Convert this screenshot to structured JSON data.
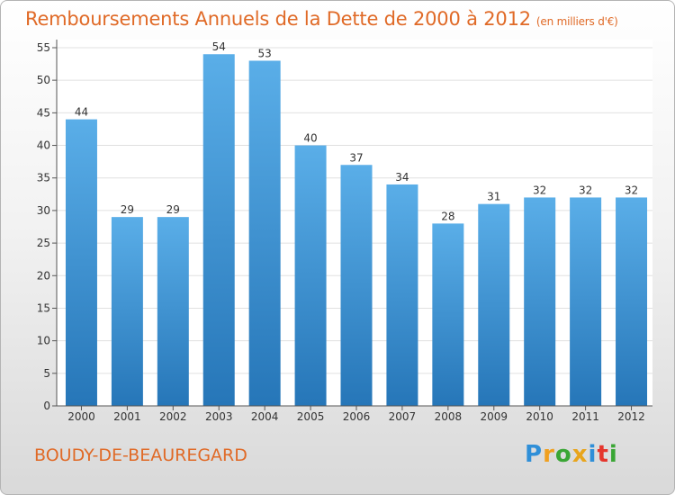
{
  "title": "Remboursements Annuels de la Dette de 2000 à 2012",
  "subtitle": "(en milliers d'€)",
  "town": "BOUDY-DE-BEAUREGARD",
  "logo": {
    "text": "Proxiti",
    "letters": [
      {
        "ch": "P",
        "color": "#2f8fd8"
      },
      {
        "ch": "r",
        "color": "#f0a020"
      },
      {
        "ch": "o",
        "color": "#3aa635"
      },
      {
        "ch": "x",
        "color": "#e8a51c"
      },
      {
        "ch": "i",
        "color": "#2f8fd8"
      },
      {
        "ch": "t",
        "color": "#e5362d"
      },
      {
        "ch": "i",
        "color": "#3aa635"
      }
    ]
  },
  "colors": {
    "bar_top": "#5aaee8",
    "bar_bottom": "#2676b8",
    "text": "#e06a27",
    "axis": "#555555",
    "grid": "#e0e0e0"
  },
  "chart_data": {
    "type": "bar",
    "categories": [
      "2000",
      "2001",
      "2002",
      "2003",
      "2004",
      "2005",
      "2006",
      "2007",
      "2008",
      "2009",
      "2010",
      "2011",
      "2012"
    ],
    "values": [
      44,
      29,
      29,
      54,
      53,
      40,
      37,
      34,
      28,
      31,
      32,
      32,
      32
    ],
    "title": "Remboursements Annuels de la Dette de 2000 à 2012",
    "ylim": [
      0,
      55
    ],
    "yticks": [
      0,
      5,
      10,
      15,
      20,
      25,
      30,
      35,
      40,
      45,
      50,
      55
    ],
    "grid": true,
    "data_labels": true
  }
}
